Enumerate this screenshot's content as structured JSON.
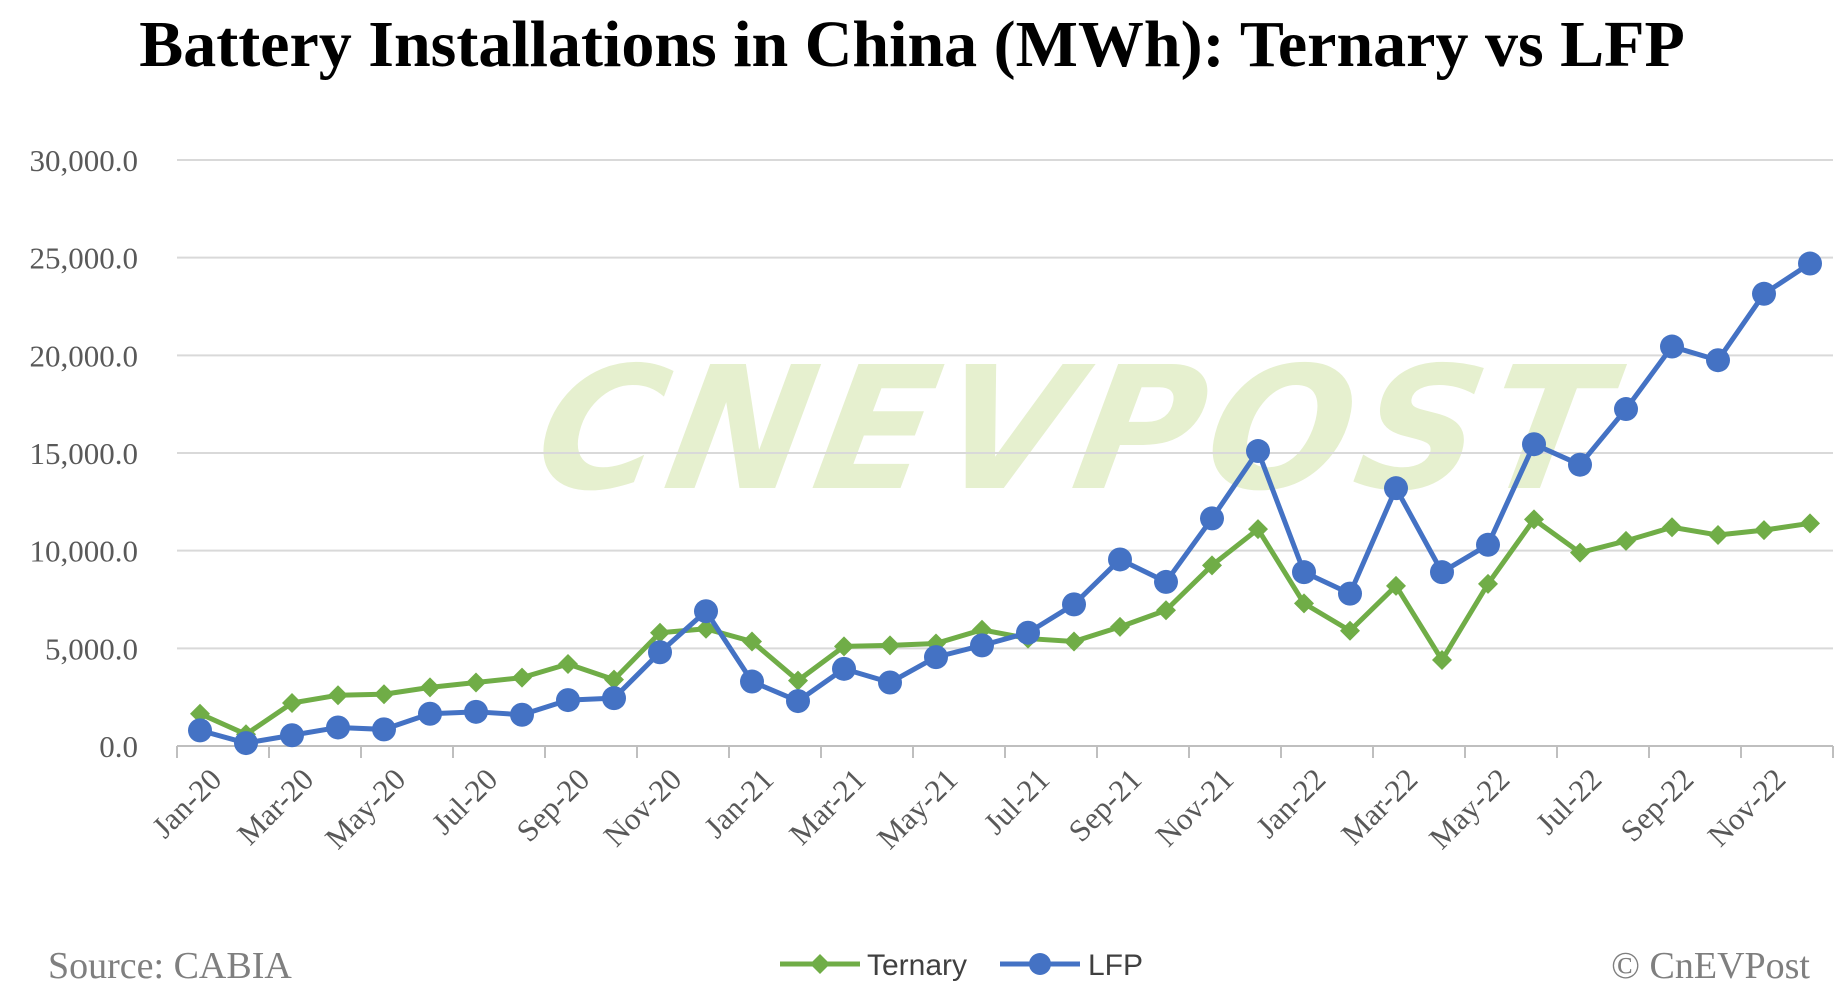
{
  "chart_data": {
    "type": "line",
    "title": "Battery Installations in China (MWh): Ternary vs LFP",
    "xlabel": "",
    "ylabel": "",
    "ylim": [
      0,
      30000
    ],
    "yticks": [
      "0.0",
      "5,000.0",
      "10,000.0",
      "15,000.0",
      "20,000.0",
      "25,000.0",
      "30,000.0"
    ],
    "grid": true,
    "legend_position": "bottom-center",
    "categories": [
      "Jan-20",
      "Feb-20",
      "Mar-20",
      "Apr-20",
      "May-20",
      "Jun-20",
      "Jul-20",
      "Aug-20",
      "Sep-20",
      "Oct-20",
      "Nov-20",
      "Dec-20",
      "Jan-21",
      "Feb-21",
      "Mar-21",
      "Apr-21",
      "May-21",
      "Jun-21",
      "Jul-21",
      "Aug-21",
      "Sep-21",
      "Oct-21",
      "Nov-21",
      "Dec-21",
      "Jan-22",
      "Feb-22",
      "Mar-22",
      "Apr-22",
      "May-22",
      "Jun-22",
      "Jul-22",
      "Aug-22",
      "Sep-22",
      "Oct-22",
      "Nov-22",
      "Dec-22"
    ],
    "xtick_labels": [
      "Jan-20",
      "Mar-20",
      "May-20",
      "Jul-20",
      "Sep-20",
      "Nov-20",
      "Jan-21",
      "Mar-21",
      "May-21",
      "Jul-21",
      "Sep-21",
      "Nov-21",
      "Jan-22",
      "Mar-22",
      "May-22",
      "Jul-22",
      "Sep-22",
      "Nov-22"
    ],
    "series": [
      {
        "name": "Ternary",
        "color": "#70ad47",
        "marker": "diamond",
        "values": [
          1650,
          600,
          2200,
          2600,
          2650,
          3000,
          3250,
          3500,
          4200,
          3400,
          5800,
          6000,
          5350,
          3350,
          5100,
          5150,
          5250,
          5950,
          5500,
          5350,
          6100,
          6950,
          9250,
          11100,
          7300,
          5900,
          8200,
          4400,
          8300,
          11600,
          9900,
          10500,
          11200,
          10800,
          11050,
          11400
        ]
      },
      {
        "name": "LFP",
        "color": "#4472c4",
        "marker": "circle",
        "values": [
          800,
          150,
          550,
          950,
          850,
          1650,
          1750,
          1600,
          2350,
          2450,
          4800,
          6900,
          3300,
          2300,
          3950,
          3250,
          4550,
          5150,
          5800,
          7250,
          9550,
          8400,
          11650,
          15100,
          8900,
          7800,
          13200,
          8900,
          10300,
          15450,
          14400,
          17250,
          20450,
          19750,
          23150,
          24700
        ]
      }
    ]
  },
  "footer": {
    "source": "Source: CABIA",
    "copyright": "© CnEVPost"
  },
  "watermark": "CNEVPOST"
}
